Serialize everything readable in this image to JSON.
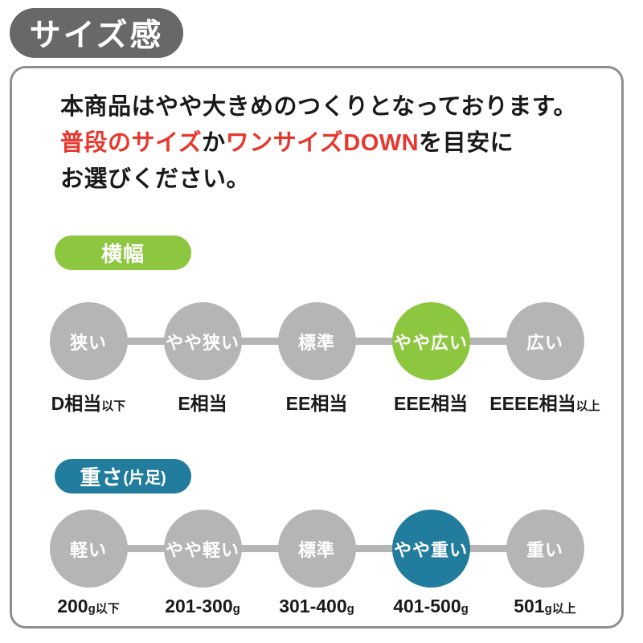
{
  "badge": {
    "label": "サイズ感"
  },
  "description": {
    "line1": "本商品はやや大きめのつくりとなっております。",
    "line2_red1": "普段のサイズ",
    "line2_black1": "か",
    "line2_red2": "ワンサイズDOWN",
    "line2_black2": "を目安に",
    "line3": "お選びください。"
  },
  "colors": {
    "badge_gray": "#686868",
    "panel_border_gray": "#8f8f8f",
    "step_gray": "#b5b5b6",
    "accent_green": "#8dc63f",
    "accent_blue": "#217c9d",
    "alert_red": "#e8382d"
  },
  "sections": [
    {
      "label": "横幅",
      "label_note": "",
      "accent": "#8dc63f",
      "selected_step": "やや広い",
      "steps": [
        {
          "circle": "狭い",
          "caption": "D相当",
          "caption_note": "以下",
          "active": false
        },
        {
          "circle": "やや狭い",
          "caption": "E相当",
          "caption_note": "",
          "active": false
        },
        {
          "circle": "標準",
          "caption": "EE相当",
          "caption_note": "",
          "active": false
        },
        {
          "circle": "やや広い",
          "caption": "EEE相当",
          "caption_note": "",
          "active": true
        },
        {
          "circle": "広い",
          "caption": "EEEE相当",
          "caption_note": "以上",
          "active": false
        }
      ]
    },
    {
      "label": "重さ",
      "label_note": "(片足)",
      "accent": "#217c9d",
      "selected_step": "やや重い",
      "steps": [
        {
          "circle": "軽い",
          "caption": "200",
          "caption_note": "g以下",
          "active": false
        },
        {
          "circle": "やや軽い",
          "caption": "201-300",
          "caption_note": "g",
          "active": false
        },
        {
          "circle": "標準",
          "caption": "301-400",
          "caption_note": "g",
          "active": false
        },
        {
          "circle": "やや重い",
          "caption": "401-500",
          "caption_note": "g",
          "active": true
        },
        {
          "circle": "重い",
          "caption": "501",
          "caption_note": "g以上",
          "active": false
        }
      ]
    }
  ]
}
